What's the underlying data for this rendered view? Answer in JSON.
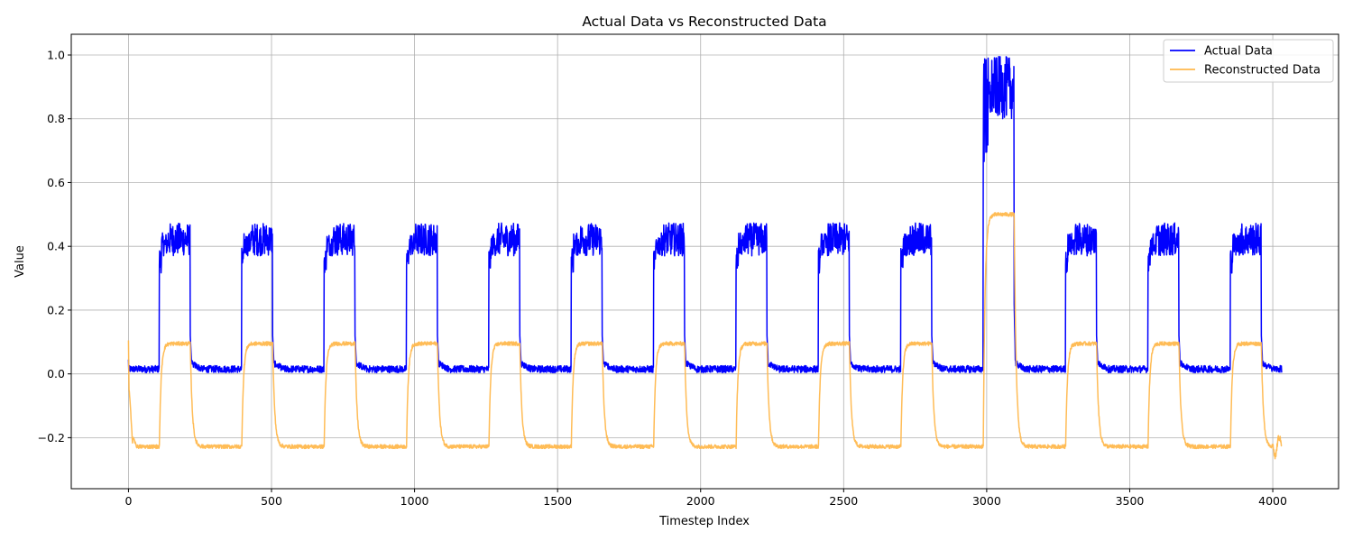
{
  "chart_data": {
    "type": "line",
    "title": "Actual Data vs Reconstructed Data",
    "xlabel": "Timestep Index",
    "ylabel": "Value",
    "xlim": [
      -200,
      4230
    ],
    "ylim": [
      -0.36,
      1.065
    ],
    "xticks": [
      0,
      500,
      1000,
      1500,
      2000,
      2500,
      3000,
      3500,
      4000
    ],
    "xtick_labels": [
      "0",
      "500",
      "1000",
      "1500",
      "2000",
      "2500",
      "3000",
      "3500",
      "4000"
    ],
    "yticks": [
      -0.2,
      0.0,
      0.2,
      0.4,
      0.6,
      0.8,
      1.0
    ],
    "ytick_labels": [
      "−0.2",
      "0.0",
      "0.2",
      "0.4",
      "0.6",
      "0.8",
      "1.0"
    ],
    "grid": true,
    "legend_position": "top-right",
    "n_points": 4032,
    "pulses": [
      {
        "start": 108,
        "end": 216,
        "low": 0.37,
        "high": 0.46,
        "recon": 0.095
      },
      {
        "start": 396,
        "end": 504,
        "low": 0.37,
        "high": 0.46,
        "recon": 0.095
      },
      {
        "start": 684,
        "end": 792,
        "low": 0.37,
        "high": 0.46,
        "recon": 0.095
      },
      {
        "start": 972,
        "end": 1080,
        "low": 0.37,
        "high": 0.46,
        "recon": 0.095
      },
      {
        "start": 1260,
        "end": 1368,
        "low": 0.37,
        "high": 0.46,
        "recon": 0.095
      },
      {
        "start": 1548,
        "end": 1656,
        "low": 0.37,
        "high": 0.46,
        "recon": 0.095
      },
      {
        "start": 1836,
        "end": 1944,
        "low": 0.37,
        "high": 0.46,
        "recon": 0.095
      },
      {
        "start": 2124,
        "end": 2232,
        "low": 0.37,
        "high": 0.46,
        "recon": 0.095
      },
      {
        "start": 2412,
        "end": 2520,
        "low": 0.37,
        "high": 0.46,
        "recon": 0.095
      },
      {
        "start": 2700,
        "end": 2808,
        "low": 0.37,
        "high": 0.46,
        "recon": 0.095
      },
      {
        "start": 2988,
        "end": 3096,
        "low": 0.8,
        "high": 0.97,
        "recon": 0.5
      },
      {
        "start": 3276,
        "end": 3384,
        "low": 0.37,
        "high": 0.46,
        "recon": 0.095
      },
      {
        "start": 3564,
        "end": 3672,
        "low": 0.37,
        "high": 0.46,
        "recon": 0.095
      },
      {
        "start": 3852,
        "end": 3960,
        "low": 0.37,
        "high": 0.46,
        "recon": 0.095
      }
    ],
    "baseline": {
      "actual": 0.015,
      "reconstructed": -0.228
    },
    "series": [
      {
        "name": "Actual Data",
        "color": "#0000ff"
      },
      {
        "name": "Reconstructed Data",
        "color": "#ffb84d"
      }
    ]
  }
}
